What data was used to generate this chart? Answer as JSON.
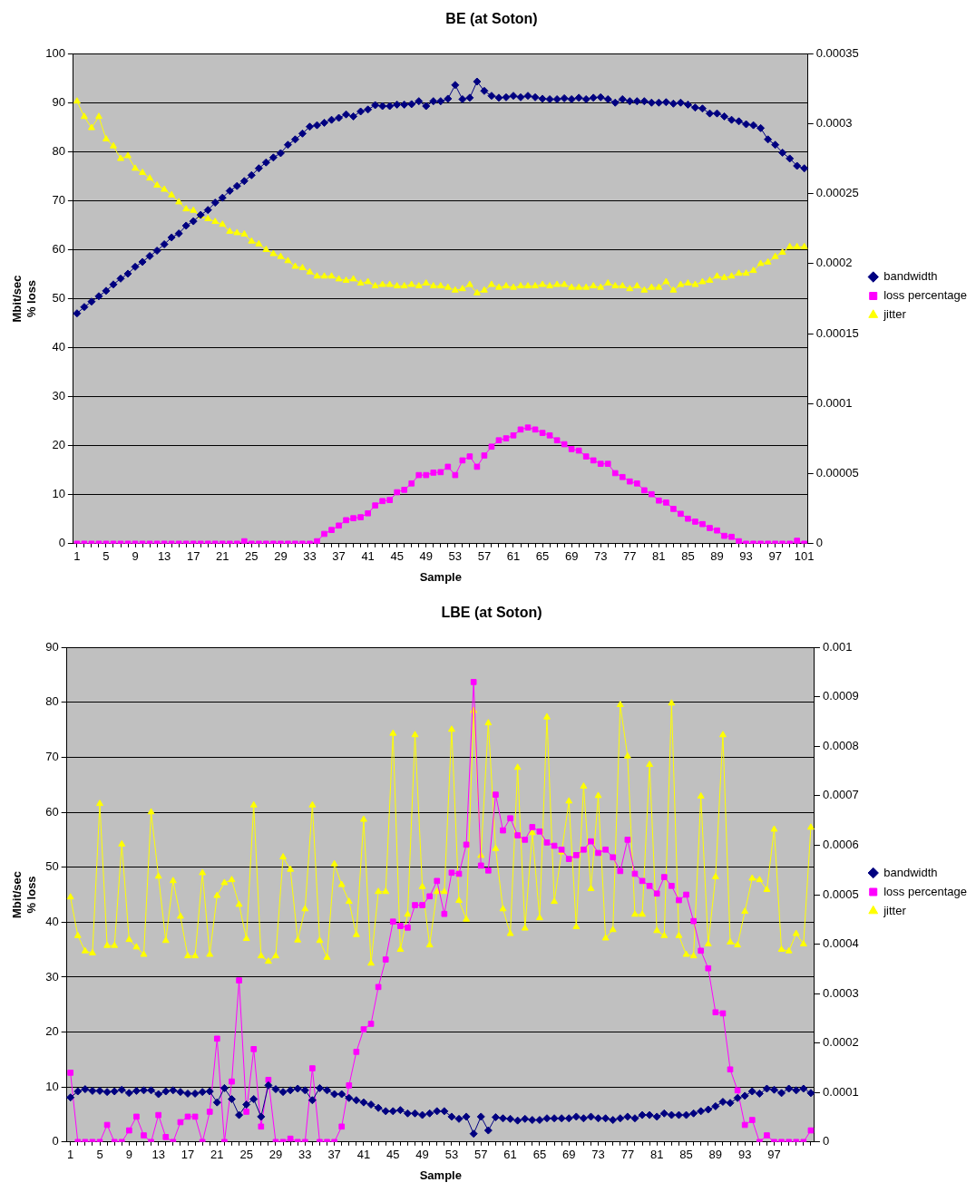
{
  "chart_data": [
    {
      "type": "line",
      "title": "BE (at Soton)",
      "xlabel": "Sample",
      "ylabel": "Mbit/sec\n% loss",
      "legend": "right",
      "grid": "y",
      "line_style": "solid",
      "categories": [
        "1",
        null,
        null,
        null,
        "5",
        null,
        null,
        null,
        "9",
        null,
        null,
        null,
        "13",
        null,
        null,
        null,
        "17",
        null,
        null,
        null,
        "21",
        null,
        null,
        null,
        "25",
        null,
        null,
        null,
        "29",
        null,
        null,
        null,
        "33",
        null,
        null,
        null,
        "37",
        null,
        null,
        null,
        "41",
        null,
        null,
        null,
        "45",
        null,
        null,
        null,
        "49",
        null,
        null,
        null,
        "53",
        null,
        null,
        null,
        "57",
        null,
        null,
        null,
        "61",
        null,
        null,
        null,
        "65",
        null,
        null,
        null,
        "69",
        null,
        null,
        null,
        "73",
        null,
        null,
        null,
        "77",
        null,
        null,
        null,
        "81",
        null,
        null,
        null,
        "85",
        null,
        null,
        null,
        "89",
        null,
        null,
        null,
        "93",
        null,
        null,
        null,
        "97",
        null,
        null,
        null,
        "101"
      ],
      "ylim": [
        0,
        100
      ],
      "yticks": [
        0,
        10,
        20,
        30,
        40,
        50,
        60,
        70,
        80,
        90,
        100
      ],
      "y2lim": [
        0,
        0.00035
      ],
      "y2ticks": [
        0,
        {
          "value": 5e-05,
          "label": "0.00005"
        },
        0.0001,
        0.00015,
        0.0002,
        0.00025,
        0.0003,
        0.00035
      ],
      "series": [
        {
          "name": "bandwidth",
          "color": "#000080",
          "marker": "diamond",
          "values": [
            47.0,
            48.3,
            49.4,
            50.5,
            51.6,
            52.9,
            54.1,
            55.1,
            56.5,
            57.5,
            58.7,
            59.8,
            61.1,
            62.5,
            63.3,
            64.9,
            65.8,
            67.1,
            68.1,
            69.6,
            70.6,
            72.0,
            73.0,
            74.0,
            75.2,
            76.6,
            77.8,
            78.8,
            79.7,
            81.4,
            82.5,
            83.7,
            85.1,
            85.4,
            85.9,
            86.5,
            86.9,
            87.6,
            87.2,
            88.2,
            88.6,
            89.5,
            89.3,
            89.3,
            89.6,
            89.6,
            89.7,
            90.3,
            89.3,
            90.3,
            90.3,
            90.8,
            93.6,
            90.7,
            91.0,
            94.3,
            92.4,
            91.4,
            91.0,
            91.1,
            91.4,
            91.1,
            91.4,
            91.1,
            90.8,
            90.7,
            90.7,
            90.9,
            90.7,
            91.0,
            90.7,
            91.0,
            91.1,
            90.7,
            90.0,
            90.7,
            90.3,
            90.3,
            90.3,
            90.0,
            90.0,
            90.1,
            89.8,
            90.0,
            89.6,
            89.0,
            88.8,
            87.8,
            87.8,
            87.2,
            86.5,
            86.2,
            85.6,
            85.4,
            84.8,
            82.5,
            81.4,
            79.8,
            78.6,
            77.1,
            76.6
          ]
        },
        {
          "name": "loss percentage",
          "color": "#ff00ff",
          "marker": "square",
          "values": [
            0,
            0,
            0,
            0,
            0,
            0,
            0,
            0,
            0,
            0,
            0,
            0,
            0,
            0,
            0,
            0,
            0,
            0,
            0,
            0,
            0,
            0,
            0,
            0.5,
            0,
            0,
            0,
            0,
            0,
            0,
            0,
            0,
            0,
            0.5,
            2.0,
            2.8,
            3.7,
            4.8,
            5.2,
            5.4,
            6.2,
            7.8,
            8.7,
            8.9,
            10.5,
            11.0,
            12.3,
            14.0,
            14.0,
            14.5,
            14.6,
            15.7,
            14.0,
            17.0,
            17.8,
            15.7,
            18.0,
            19.8,
            21.1,
            21.5,
            22.1,
            23.3,
            23.7,
            23.3,
            22.6,
            22.1,
            21.1,
            20.3,
            19.3,
            19.0,
            17.8,
            17.0,
            16.3,
            16.3,
            14.4,
            13.6,
            12.7,
            12.3,
            10.9,
            10.1,
            8.8,
            8.4,
            7.1,
            6.1,
            5.1,
            4.5,
            4.0,
            3.2,
            2.7,
            1.6,
            1.4,
            0.5,
            0,
            0,
            0,
            0,
            0,
            0,
            0,
            0.6,
            0
          ]
        },
        {
          "name": "jitter",
          "color": "#ffff00",
          "marker": "triangle",
          "axis": "y2",
          "values": [
            0.000316,
            0.000305,
            0.000297,
            0.000305,
            0.000289,
            0.000284,
            0.000275,
            0.000277,
            0.000268,
            0.000265,
            0.000261,
            0.000256,
            0.000253,
            0.000249,
            0.000244,
            0.000239,
            0.000238,
            0.000234,
            0.000232,
            0.00023,
            0.000228,
            0.000223,
            0.000222,
            0.000221,
            0.000216,
            0.000214,
            0.00021,
            0.000207,
            0.000205,
            0.000202,
            0.000198,
            0.000197,
            0.000194,
            0.000191,
            0.000191,
            0.000191,
            0.000189,
            0.000188,
            0.000189,
            0.000186,
            0.000187,
            0.000184,
            0.000185,
            0.000185,
            0.000184,
            0.000184,
            0.000185,
            0.000184,
            0.000186,
            0.000184,
            0.000184,
            0.000183,
            0.000181,
            0.000182,
            0.000185,
            0.000179,
            0.000181,
            0.000185,
            0.000183,
            0.000184,
            0.000183,
            0.000184,
            0.000184,
            0.000184,
            0.000185,
            0.000184,
            0.000185,
            0.000185,
            0.000183,
            0.000183,
            0.000183,
            0.000184,
            0.000183,
            0.000186,
            0.000184,
            0.000184,
            0.000182,
            0.000184,
            0.000181,
            0.000183,
            0.000183,
            0.000187,
            0.000181,
            0.000185,
            0.000186,
            0.000185,
            0.000187,
            0.000188,
            0.000191,
            0.00019,
            0.000191,
            0.000193,
            0.000193,
            0.000195,
            0.0002,
            0.000201,
            0.000205,
            0.000208,
            0.000212,
            0.000212,
            0.000212
          ]
        }
      ]
    },
    {
      "type": "line",
      "title": "LBE (at Soton)",
      "xlabel": "Sample",
      "ylabel": "Mbit/sec\n% loss",
      "legend": "right",
      "grid": "y",
      "line_style": "solid",
      "categories": [
        "1",
        null,
        null,
        null,
        "5",
        null,
        null,
        null,
        "9",
        null,
        null,
        null,
        "13",
        null,
        null,
        null,
        "17",
        null,
        null,
        null,
        "21",
        null,
        null,
        null,
        "25",
        null,
        null,
        null,
        "29",
        null,
        null,
        null,
        "33",
        null,
        null,
        null,
        "37",
        null,
        null,
        null,
        "41",
        null,
        null,
        null,
        "45",
        null,
        null,
        null,
        "49",
        null,
        null,
        null,
        "53",
        null,
        null,
        null,
        "57",
        null,
        null,
        null,
        "61",
        null,
        null,
        null,
        "65",
        null,
        null,
        null,
        "69",
        null,
        null,
        null,
        "73",
        null,
        null,
        null,
        "77",
        null,
        null,
        null,
        "81",
        null,
        null,
        null,
        "85",
        null,
        null,
        null,
        "89",
        null,
        null,
        null,
        "93",
        null,
        null,
        null,
        "97",
        null,
        null,
        null,
        null,
        null
      ],
      "ylim": [
        0,
        90
      ],
      "yticks": [
        0,
        10,
        20,
        30,
        40,
        50,
        60,
        70,
        80,
        90
      ],
      "y2lim": [
        0,
        0.001
      ],
      "y2ticks": [
        0,
        0.0001,
        0.0002,
        0.0003,
        0.0004,
        0.0005,
        0.0006,
        0.0007,
        0.0008,
        0.0009,
        0.001
      ],
      "series": [
        {
          "name": "bandwidth",
          "color": "#000080",
          "marker": "diamond",
          "values": [
            8.1,
            9.2,
            9.6,
            9.3,
            9.3,
            9.1,
            9.2,
            9.5,
            8.9,
            9.3,
            9.4,
            9.4,
            8.7,
            9.2,
            9.4,
            9.1,
            8.8,
            8.8,
            9.1,
            9.2,
            7.2,
            9.8,
            7.8,
            4.9,
            6.8,
            7.8,
            4.6,
            10.3,
            9.6,
            9.1,
            9.4,
            9.7,
            9.4,
            7.6,
            9.8,
            9.4,
            8.7,
            8.7,
            8.0,
            7.6,
            7.2,
            6.8,
            6.2,
            5.6,
            5.6,
            5.8,
            5.2,
            5.2,
            4.9,
            5.2,
            5.6,
            5.6,
            4.6,
            4.2,
            4.6,
            1.5,
            4.6,
            2.1,
            4.5,
            4.3,
            4.2,
            3.9,
            4.2,
            4.0,
            4.0,
            4.3,
            4.3,
            4.3,
            4.3,
            4.6,
            4.3,
            4.6,
            4.3,
            4.3,
            4.0,
            4.3,
            4.6,
            4.3,
            4.9,
            4.9,
            4.6,
            5.2,
            4.9,
            4.9,
            4.9,
            5.2,
            5.6,
            5.9,
            6.5,
            7.3,
            7.1,
            8.0,
            8.4,
            9.2,
            8.8,
            9.7,
            9.5,
            8.9,
            9.7,
            9.4,
            9.7,
            8.9
          ]
        },
        {
          "name": "loss percentage",
          "color": "#ff00ff",
          "marker": "square",
          "values": [
            12.6,
            0,
            0,
            0,
            0,
            3.1,
            0,
            0,
            2.1,
            4.6,
            1.2,
            0,
            4.9,
            0.9,
            0,
            3.6,
            4.6,
            4.6,
            0,
            5.5,
            18.8,
            0,
            11.0,
            29.4,
            5.5,
            16.9,
            2.8,
            11.3,
            0,
            0,
            0.6,
            0,
            0,
            13.4,
            0,
            0,
            0,
            2.8,
            10.3,
            16.4,
            20.5,
            21.5,
            28.2,
            33.2,
            40.1,
            39.3,
            39.0,
            43.1,
            43.1,
            44.7,
            47.5,
            41.5,
            49.0,
            48.8,
            54.1,
            83.7,
            50.3,
            49.4,
            63.2,
            56.7,
            58.9,
            55.8,
            55.0,
            57.3,
            56.5,
            54.5,
            53.9,
            53.2,
            51.5,
            52.2,
            53.2,
            54.7,
            52.6,
            53.2,
            51.8,
            49.3,
            55.0,
            48.8,
            47.5,
            46.6,
            45.2,
            48.2,
            46.6,
            44.0,
            45.0,
            40.2,
            34.8,
            31.6,
            23.6,
            23.4,
            13.2,
            9.4,
            3.1,
            4.0,
            0,
            1.2,
            0,
            0,
            0,
            0,
            0,
            2.1
          ]
        },
        {
          "name": "jitter",
          "color": "#ffff00",
          "marker": "triangle",
          "axis": "y2",
          "values": [
            0.000495,
            0.000417,
            0.000386,
            0.000382,
            0.000684,
            0.000397,
            0.000397,
            0.000602,
            0.000409,
            0.000394,
            0.000379,
            0.000667,
            0.000537,
            0.000407,
            0.000528,
            0.000456,
            0.000376,
            0.000376,
            0.000544,
            0.000379,
            0.000498,
            0.000524,
            0.00053,
            0.00048,
            0.000411,
            0.000681,
            0.000376,
            0.000365,
            0.000376,
            0.000576,
            0.000551,
            0.000408,
            0.000471,
            0.000681,
            0.000407,
            0.000373,
            0.000562,
            0.00052,
            0.000486,
            0.000419,
            0.000652,
            0.000361,
            0.000506,
            0.000506,
            0.000826,
            0.000389,
            0.00046,
            0.000823,
            0.000516,
            0.000398,
            0.000506,
            0.000506,
            0.000834,
            0.000488,
            0.00045,
            0.000872,
            0.000579,
            0.000847,
            0.000593,
            0.000471,
            0.000421,
            0.000757,
            0.000432,
            0.000625,
            0.000453,
            0.000859,
            0.000486,
            0.000586,
            0.000689,
            0.000435,
            0.000719,
            0.000512,
            0.0007,
            0.000412,
            0.000429,
            0.000884,
            0.00078,
            0.00046,
            0.00046,
            0.000763,
            0.000427,
            0.000417,
            0.000887,
            0.000417,
            0.000379,
            0.000376,
            0.000699,
            0.0004,
            0.000536,
            0.000823,
            0.000404,
            0.000398,
            0.000466,
            0.000533,
            0.00053,
            0.00051,
            0.000632,
            0.000389,
            0.000386,
            0.000421,
            0.0004,
            0.000636
          ]
        }
      ]
    }
  ]
}
